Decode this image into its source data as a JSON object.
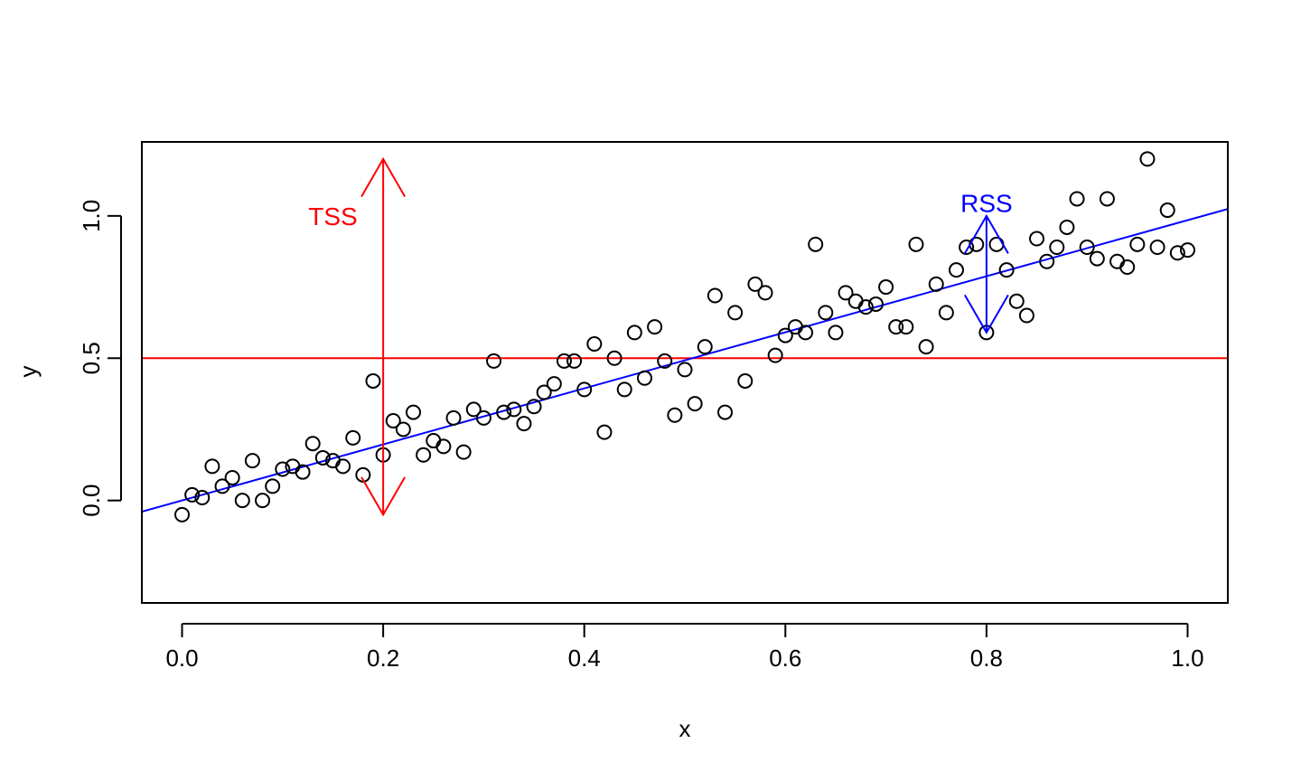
{
  "chart_data": {
    "type": "scatter",
    "title": "",
    "xlabel": "x",
    "ylabel": "y",
    "xlim": [
      -0.04,
      1.04
    ],
    "ylim": [
      -0.36,
      1.26
    ],
    "xticks": [
      0.0,
      0.2,
      0.4,
      0.6,
      0.8,
      1.0
    ],
    "xtick_labels": [
      "0.0",
      "0.2",
      "0.4",
      "0.6",
      "0.8",
      "1.0"
    ],
    "yticks": [
      0.0,
      0.5,
      1.0
    ],
    "ytick_labels": [
      "0.0",
      "0.5",
      "1.0"
    ],
    "grid": false,
    "points": {
      "x": [
        0.0,
        0.01,
        0.02,
        0.03,
        0.04,
        0.05,
        0.06,
        0.07,
        0.08,
        0.09,
        0.1,
        0.11,
        0.12,
        0.13,
        0.14,
        0.15,
        0.16,
        0.17,
        0.18,
        0.19,
        0.2,
        0.21,
        0.22,
        0.23,
        0.24,
        0.25,
        0.26,
        0.27,
        0.28,
        0.29,
        0.3,
        0.31,
        0.32,
        0.33,
        0.34,
        0.35,
        0.36,
        0.37,
        0.38,
        0.39,
        0.4,
        0.41,
        0.42,
        0.43,
        0.44,
        0.45,
        0.46,
        0.47,
        0.48,
        0.49,
        0.5,
        0.51,
        0.52,
        0.53,
        0.54,
        0.55,
        0.56,
        0.57,
        0.58,
        0.59,
        0.6,
        0.61,
        0.62,
        0.63,
        0.64,
        0.65,
        0.66,
        0.67,
        0.68,
        0.69,
        0.7,
        0.71,
        0.72,
        0.73,
        0.74,
        0.75,
        0.76,
        0.77,
        0.78,
        0.79,
        0.8,
        0.81,
        0.82,
        0.83,
        0.84,
        0.85,
        0.86,
        0.87,
        0.88,
        0.89,
        0.9,
        0.91,
        0.92,
        0.93,
        0.94,
        0.95,
        0.96,
        0.97,
        0.98,
        0.99,
        1.0
      ],
      "y": [
        -0.05,
        0.02,
        0.01,
        0.12,
        0.05,
        0.08,
        0.0,
        0.14,
        0.0,
        0.05,
        0.11,
        0.12,
        0.1,
        0.2,
        0.15,
        0.14,
        0.12,
        0.22,
        0.09,
        0.42,
        0.16,
        0.28,
        0.25,
        0.31,
        0.16,
        0.21,
        0.19,
        0.29,
        0.17,
        0.32,
        0.29,
        0.49,
        0.31,
        0.32,
        0.27,
        0.33,
        0.38,
        0.41,
        0.49,
        0.49,
        0.39,
        0.55,
        0.24,
        0.5,
        0.39,
        0.59,
        0.43,
        0.61,
        0.49,
        0.3,
        0.46,
        0.34,
        0.54,
        0.72,
        0.31,
        0.66,
        0.42,
        0.76,
        0.73,
        0.51,
        0.58,
        0.61,
        0.59,
        0.9,
        0.66,
        0.59,
        0.73,
        0.7,
        0.68,
        0.69,
        0.75,
        0.61,
        0.61,
        0.9,
        0.54,
        0.76,
        0.66,
        0.81,
        0.89,
        0.9,
        0.59,
        0.9,
        0.81,
        0.7,
        0.65,
        0.92,
        0.84,
        0.89,
        0.96,
        1.06,
        0.89,
        0.85,
        1.06,
        0.84,
        0.82,
        0.9,
        1.2,
        0.89,
        1.02,
        0.87,
        0.88
      ]
    },
    "fit_line": {
      "intercept": 0.0,
      "slope": 0.985,
      "color": "#0000ff"
    },
    "mean_line": {
      "y": 0.5,
      "color": "#ff0000"
    },
    "annotations": [
      {
        "label": "TSS",
        "x": 0.2,
        "y_from": 1.2,
        "y_to": -0.05,
        "label_x": 0.15,
        "label_y": 1.0,
        "color": "#ff0000"
      },
      {
        "label": "RSS",
        "x": 0.8,
        "y_from": 1.0,
        "y_to": 0.59,
        "label_x": 0.8,
        "label_y": 1.045,
        "color": "#0000ff"
      }
    ]
  }
}
